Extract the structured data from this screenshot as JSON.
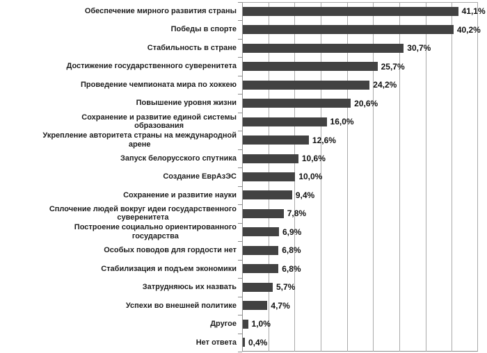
{
  "chart_data": {
    "type": "bar",
    "orientation": "horizontal",
    "title": "",
    "xlabel": "",
    "ylabel": "",
    "grid": true,
    "legend": false,
    "xlim": [
      0,
      45
    ],
    "gridline_step": 5,
    "categories": [
      "Обеспечение мирного развития страны",
      "Победы в спорте",
      "Стабильность в стране",
      "Достижение государственного суверенитета",
      "Проведение чемпионата мира по хоккею",
      "Повышение уровня жизни",
      "Сохранение и развитие единой системы\nобразования",
      "Укрепление авторитета страны на международной\nарене",
      "Запуск белорусского спутника",
      "Создание ЕврАзЭС",
      "Сохранение и развитие науки",
      "Сплочение людей вокруг идеи государственного\nсуверенитета",
      "Построение социально ориентированного\nгосударства",
      "Особых поводов для гордости нет",
      "Стабилизация и подъем экономики",
      "Затрудняюсь их назвать",
      "Успехи во внешней политике",
      "Другое",
      "Нет ответа"
    ],
    "values": [
      41.1,
      40.2,
      30.7,
      25.7,
      24.2,
      20.6,
      16.0,
      12.6,
      10.6,
      10.0,
      9.4,
      7.8,
      6.9,
      6.8,
      6.8,
      5.7,
      4.7,
      1.0,
      0.4
    ],
    "value_labels": [
      "41,1%",
      "40,2%",
      "30,7%",
      "25,7%",
      "24,2%",
      "20,6%",
      "16,0%",
      "12,6%",
      "10,6%",
      "10,0%",
      "9,4%",
      "7,8%",
      "6,9%",
      "6,8%",
      "6,8%",
      "5,7%",
      "4,7%",
      "1,0%",
      "0,4%"
    ],
    "colors": {
      "bar": "#424242",
      "gridline": "#a9a9a9",
      "axis": "#8c8c8c",
      "background": "#ffffff"
    }
  }
}
